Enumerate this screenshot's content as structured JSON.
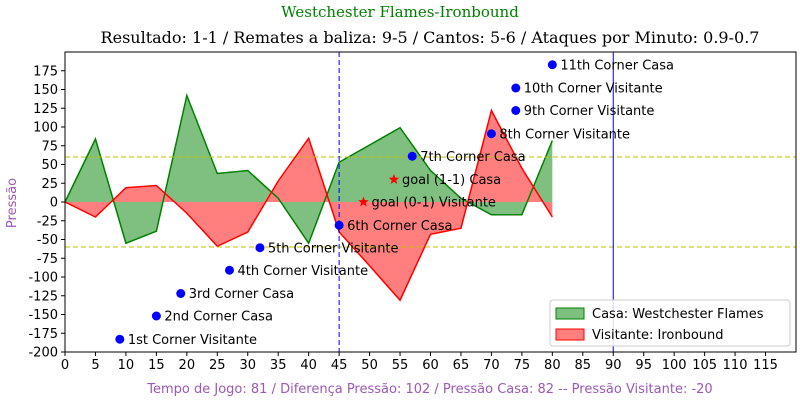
{
  "chart_data": {
    "type": "area",
    "title": "Westchester Flames-Ironbound",
    "subtitle": "Resultado: 1-1 / Remates a baliza: 9-5 / Cantos: 5-6 / Ataques por Minuto: 0.9-0.7",
    "ylabel": "Pressão",
    "footer": "Tempo de Jogo: 81 / Diferença Pressão: 102 / Pressão Casa: 82 -- Pressão Visitante: -20",
    "xlim": [
      0,
      120
    ],
    "ylim": [
      -200,
      200
    ],
    "xticks": [
      0,
      5,
      10,
      15,
      20,
      25,
      30,
      35,
      40,
      45,
      50,
      55,
      60,
      65,
      70,
      75,
      80,
      85,
      90,
      95,
      100,
      105,
      110,
      115
    ],
    "yticks": [
      -200,
      -175,
      -150,
      -125,
      -100,
      -75,
      -50,
      -25,
      0,
      25,
      50,
      75,
      100,
      125,
      150,
      175
    ],
    "series": [
      {
        "name": "Casa: Westchester Flames",
        "color": "#008000",
        "fill": "#7fbf7f",
        "x": [
          0,
          5,
          10,
          15,
          20,
          25,
          30,
          35,
          40,
          45,
          50,
          55,
          60,
          65,
          70,
          75,
          80
        ],
        "values": [
          0,
          84,
          -55,
          -39,
          142,
          38,
          42,
          5,
          -55,
          53,
          76,
          99,
          42,
          5,
          -17,
          -17,
          82
        ]
      },
      {
        "name": "Visitante: Ironbound",
        "color": "#ff0000",
        "fill": "#ff7f7f",
        "x": [
          0,
          5,
          10,
          15,
          20,
          25,
          30,
          35,
          40,
          45,
          50,
          55,
          60,
          65,
          70,
          75,
          80
        ],
        "values": [
          0,
          -20,
          19,
          22,
          -15,
          -59,
          -40,
          28,
          85,
          -40,
          -85,
          -131,
          -43,
          -35,
          122,
          45,
          -20
        ]
      }
    ],
    "hlines": [
      {
        "y": 60,
        "color": "#bfbf00",
        "style": "dashed"
      },
      {
        "y": -60,
        "color": "#bfbf00",
        "style": "dashed"
      }
    ],
    "vlines": [
      {
        "x": 45,
        "color": "#0000ff",
        "style": "dashed"
      },
      {
        "x": 90,
        "color": "#0000ff",
        "style": "solid"
      }
    ],
    "annotations": [
      {
        "x": 9,
        "y": -183,
        "label": "1st Corner Visitante",
        "marker": "circle"
      },
      {
        "x": 15,
        "y": -152,
        "label": "2nd Corner Casa",
        "marker": "circle"
      },
      {
        "x": 19,
        "y": -122,
        "label": "3rd Corner Casa",
        "marker": "circle"
      },
      {
        "x": 27,
        "y": -91,
        "label": "4th Corner Visitante",
        "marker": "circle"
      },
      {
        "x": 32,
        "y": -61,
        "label": "5th Corner Visitante",
        "marker": "circle"
      },
      {
        "x": 45,
        "y": -31,
        "label": "6th Corner Casa",
        "marker": "circle"
      },
      {
        "x": 49,
        "y": 0,
        "label": "goal (0-1) Visitante",
        "marker": "star"
      },
      {
        "x": 54,
        "y": 30,
        "label": "goal (1-1) Casa",
        "marker": "star"
      },
      {
        "x": 57,
        "y": 61,
        "label": "7th Corner Casa",
        "marker": "circle"
      },
      {
        "x": 70,
        "y": 91,
        "label": "8th Corner Visitante",
        "marker": "circle"
      },
      {
        "x": 74,
        "y": 122,
        "label": "9th Corner Visitante",
        "marker": "circle"
      },
      {
        "x": 74,
        "y": 152,
        "label": "10th Corner Visitante",
        "marker": "circle"
      },
      {
        "x": 80,
        "y": 183,
        "label": "11th Corner Casa",
        "marker": "circle"
      }
    ],
    "legend": {
      "position": "lower-right",
      "entries": [
        "Casa: Westchester Flames",
        "Visitante: Ironbound"
      ]
    },
    "grid": false
  }
}
